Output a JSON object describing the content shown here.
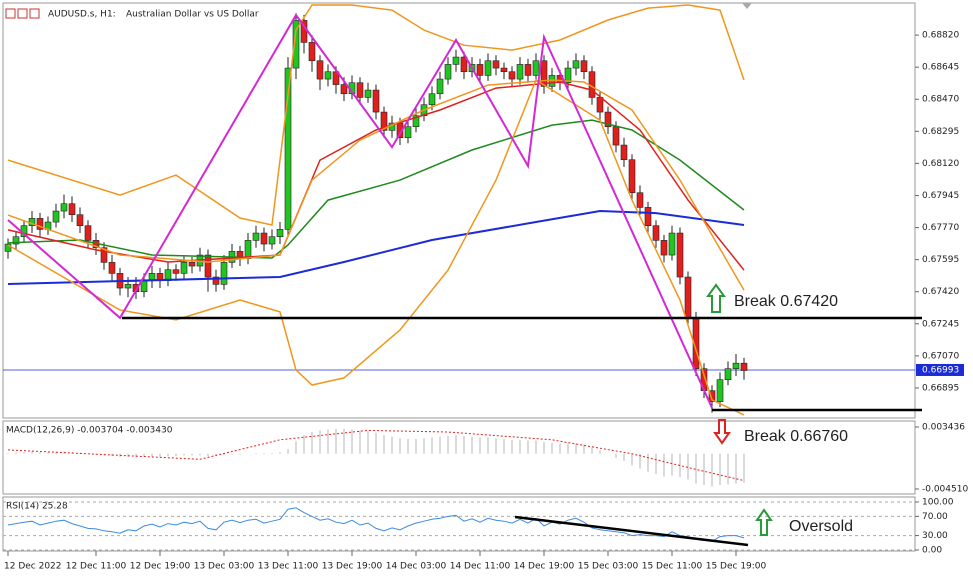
{
  "header": {
    "symbol": "AUDUSD.s, H1:",
    "description": "Australian Dollar vs US Dollar"
  },
  "chart_data": [
    {
      "type": "candlestick",
      "up_color": "#22c422",
      "down_color": "#e0201c",
      "ylim": [
        0.66731,
        0.68995
      ],
      "yticks": [
        {
          "value": 0.6882,
          "label": "0.68820"
        },
        {
          "value": 0.68645,
          "label": "0.68645"
        },
        {
          "value": 0.6847,
          "label": "0.68470"
        },
        {
          "value": 0.68295,
          "label": "0.68295"
        },
        {
          "value": 0.6812,
          "label": "0.68120"
        },
        {
          "value": 0.67945,
          "label": "0.67945"
        },
        {
          "value": 0.6777,
          "label": "0.67770"
        },
        {
          "value": 0.67595,
          "label": "0.67595"
        },
        {
          "value": 0.6742,
          "label": "0.67420"
        },
        {
          "value": 0.67245,
          "label": "0.67245"
        },
        {
          "value": 0.6707,
          "label": "0.67070"
        },
        {
          "value": 0.66895,
          "label": "0.66895"
        }
      ],
      "xticks": [
        {
          "value": 0,
          "label": "12 Dec 2022"
        },
        {
          "value": 11,
          "label": "12 Dec 11:00"
        },
        {
          "value": 19,
          "label": "12 Dec 19:00"
        },
        {
          "value": 27,
          "label": "13 Dec 03:00"
        },
        {
          "value": 35,
          "label": "13 Dec 11:00"
        },
        {
          "value": 43,
          "label": "13 Dec 19:00"
        },
        {
          "value": 51,
          "label": "14 Dec 03:00"
        },
        {
          "value": 59,
          "label": "14 Dec 11:00"
        },
        {
          "value": 67,
          "label": "14 Dec 19:00"
        },
        {
          "value": 75,
          "label": "15 Dec 03:00"
        },
        {
          "value": 83,
          "label": "15 Dec 11:00"
        },
        {
          "value": 91,
          "label": "15 Dec 19:00"
        }
      ],
      "current_price": 0.66993,
      "candles": [
        [
          0.6764,
          0.6771,
          0.676,
          0.6768
        ],
        [
          0.6768,
          0.6775,
          0.6765,
          0.6772
        ],
        [
          0.6772,
          0.6781,
          0.6769,
          0.6778
        ],
        [
          0.6778,
          0.6786,
          0.6774,
          0.6782
        ],
        [
          0.6782,
          0.6785,
          0.6772,
          0.6776
        ],
        [
          0.6776,
          0.6783,
          0.6773,
          0.678
        ],
        [
          0.678,
          0.679,
          0.6777,
          0.6786
        ],
        [
          0.6786,
          0.6795,
          0.6782,
          0.679
        ],
        [
          0.679,
          0.6794,
          0.678,
          0.6784
        ],
        [
          0.6784,
          0.6788,
          0.6774,
          0.6778
        ],
        [
          0.6778,
          0.6781,
          0.6766,
          0.677
        ],
        [
          0.677,
          0.6774,
          0.6762,
          0.6766
        ],
        [
          0.6766,
          0.6769,
          0.6754,
          0.6758
        ],
        [
          0.6758,
          0.6762,
          0.6748,
          0.6752
        ],
        [
          0.6752,
          0.6755,
          0.674,
          0.6744
        ],
        [
          0.6744,
          0.675,
          0.6739,
          0.6746
        ],
        [
          0.6746,
          0.675,
          0.6738,
          0.6742
        ],
        [
          0.6742,
          0.6752,
          0.6739,
          0.6748
        ],
        [
          0.6748,
          0.6756,
          0.6744,
          0.6752
        ],
        [
          0.6752,
          0.6755,
          0.6744,
          0.6748
        ],
        [
          0.6748,
          0.6758,
          0.6745,
          0.6754
        ],
        [
          0.6754,
          0.6757,
          0.6748,
          0.6752
        ],
        [
          0.6752,
          0.6762,
          0.6749,
          0.6758
        ],
        [
          0.6758,
          0.6761,
          0.6752,
          0.6756
        ],
        [
          0.6756,
          0.6766,
          0.6753,
          0.6762
        ],
        [
          0.6762,
          0.6765,
          0.6742,
          0.675
        ],
        [
          0.675,
          0.6754,
          0.6742,
          0.6746
        ],
        [
          0.6746,
          0.6762,
          0.6743,
          0.6758
        ],
        [
          0.6758,
          0.6768,
          0.6755,
          0.6764
        ],
        [
          0.6764,
          0.6767,
          0.6756,
          0.676
        ],
        [
          0.676,
          0.6774,
          0.6757,
          0.677
        ],
        [
          0.677,
          0.6778,
          0.6766,
          0.6774
        ],
        [
          0.6774,
          0.6777,
          0.6764,
          0.6768
        ],
        [
          0.6768,
          0.6776,
          0.6765,
          0.6772
        ],
        [
          0.6772,
          0.678,
          0.6768,
          0.6776
        ],
        [
          0.6776,
          0.687,
          0.6772,
          0.6864
        ],
        [
          0.6864,
          0.6894,
          0.6858,
          0.689
        ],
        [
          0.689,
          0.6893,
          0.6872,
          0.6878
        ],
        [
          0.6878,
          0.6882,
          0.6862,
          0.6868
        ],
        [
          0.6868,
          0.6871,
          0.6852,
          0.6858
        ],
        [
          0.6858,
          0.6866,
          0.6854,
          0.6862
        ],
        [
          0.6862,
          0.6865,
          0.685,
          0.6855
        ],
        [
          0.6855,
          0.6859,
          0.6846,
          0.685
        ],
        [
          0.685,
          0.686,
          0.6847,
          0.6856
        ],
        [
          0.6856,
          0.6859,
          0.6844,
          0.6848
        ],
        [
          0.6848,
          0.6856,
          0.6845,
          0.6852
        ],
        [
          0.6852,
          0.6855,
          0.6836,
          0.684
        ],
        [
          0.684,
          0.6843,
          0.6826,
          0.683
        ],
        [
          0.683,
          0.6838,
          0.6826,
          0.6834
        ],
        [
          0.6834,
          0.6837,
          0.6822,
          0.6826
        ],
        [
          0.6826,
          0.6836,
          0.6823,
          0.6832
        ],
        [
          0.6832,
          0.6842,
          0.6829,
          0.6838
        ],
        [
          0.6838,
          0.6848,
          0.6835,
          0.6844
        ],
        [
          0.6844,
          0.6854,
          0.6841,
          0.685
        ],
        [
          0.685,
          0.6862,
          0.6847,
          0.6858
        ],
        [
          0.6858,
          0.687,
          0.6855,
          0.6866
        ],
        [
          0.6866,
          0.6874,
          0.6862,
          0.687
        ],
        [
          0.687,
          0.6873,
          0.6858,
          0.6862
        ],
        [
          0.6862,
          0.687,
          0.6859,
          0.6866
        ],
        [
          0.6866,
          0.6869,
          0.6856,
          0.686
        ],
        [
          0.686,
          0.6872,
          0.6857,
          0.6868
        ],
        [
          0.6868,
          0.6871,
          0.686,
          0.6864
        ],
        [
          0.6864,
          0.6867,
          0.6858,
          0.6862
        ],
        [
          0.6862,
          0.6865,
          0.6854,
          0.6858
        ],
        [
          0.6858,
          0.687,
          0.6855,
          0.6866
        ],
        [
          0.6866,
          0.6869,
          0.6856,
          0.686
        ],
        [
          0.686,
          0.6872,
          0.6857,
          0.6868
        ],
        [
          0.6868,
          0.6871,
          0.685,
          0.6854
        ],
        [
          0.6854,
          0.6864,
          0.6851,
          0.686
        ],
        [
          0.686,
          0.6863,
          0.6852,
          0.6856
        ],
        [
          0.6856,
          0.6868,
          0.6853,
          0.6864
        ],
        [
          0.6864,
          0.6872,
          0.686,
          0.6868
        ],
        [
          0.6868,
          0.6871,
          0.6858,
          0.6862
        ],
        [
          0.6862,
          0.6865,
          0.6844,
          0.6848
        ],
        [
          0.6848,
          0.6851,
          0.6836,
          0.684
        ],
        [
          0.684,
          0.6843,
          0.6828,
          0.6832
        ],
        [
          0.6832,
          0.6835,
          0.6818,
          0.6822
        ],
        [
          0.6822,
          0.6826,
          0.681,
          0.6814
        ],
        [
          0.6814,
          0.6817,
          0.6792,
          0.6796
        ],
        [
          0.6796,
          0.68,
          0.6784,
          0.6788
        ],
        [
          0.6788,
          0.6791,
          0.6774,
          0.6778
        ],
        [
          0.6778,
          0.6781,
          0.6766,
          0.677
        ],
        [
          0.677,
          0.6773,
          0.6758,
          0.6762
        ],
        [
          0.6762,
          0.6778,
          0.6759,
          0.6774
        ],
        [
          0.6774,
          0.6777,
          0.6746,
          0.675
        ],
        [
          0.675,
          0.6753,
          0.6724,
          0.6728
        ],
        [
          0.6728,
          0.6731,
          0.6696,
          0.67
        ],
        [
          0.67,
          0.6703,
          0.6684,
          0.6688
        ],
        [
          0.6688,
          0.6691,
          0.6676,
          0.6682
        ],
        [
          0.6682,
          0.6698,
          0.6679,
          0.6694
        ],
        [
          0.6694,
          0.6704,
          0.6691,
          0.67
        ],
        [
          0.67,
          0.6708,
          0.6696,
          0.6703
        ],
        [
          0.6703,
          0.6706,
          0.6694,
          0.6699
        ]
      ],
      "overlays": [
        {
          "color": "#1a2bd8",
          "x": [
            0,
            34,
            42,
            53,
            66,
            74,
            81,
            92
          ],
          "values": [
            0.67462,
            0.675,
            0.67582,
            0.67702,
            0.678,
            0.6786,
            0.67849,
            0.67784
          ]
        },
        {
          "color": "#1e8a1e",
          "x": [
            0,
            9,
            18,
            33,
            35,
            40,
            49,
            58,
            68,
            73,
            78,
            84,
            92
          ],
          "values": [
            0.67686,
            0.67702,
            0.6762,
            0.67604,
            0.67675,
            0.6792,
            0.68029,
            0.68193,
            0.68329,
            0.68356,
            0.68302,
            0.68138,
            0.67866
          ]
        },
        {
          "color": "#e0201c",
          "x": [
            0,
            11,
            20,
            34,
            39,
            46,
            54,
            61,
            69,
            73,
            79,
            85,
            92
          ],
          "values": [
            0.67757,
            0.67648,
            0.67582,
            0.6762,
            0.68138,
            0.68302,
            0.68411,
            0.68531,
            0.68564,
            0.6852,
            0.68302,
            0.6792,
            0.67538
          ]
        },
        {
          "color": "#f0961e",
          "x": [
            0,
            14,
            21,
            29,
            33,
            36,
            38,
            43,
            48,
            52,
            57,
            63,
            69,
            75,
            80,
            85,
            89,
            92
          ],
          "values": [
            0.68138,
            0.67947,
            0.68056,
            0.67822,
            0.67784,
            0.68847,
            0.68984,
            0.68984,
            0.68956,
            0.68847,
            0.68765,
            0.68738,
            0.68793,
            0.68902,
            0.68967,
            0.68984,
            0.68956,
            0.68575
          ]
        },
        {
          "color": "#f0961e",
          "x": [
            0,
            14,
            21,
            29,
            34,
            36,
            38,
            42,
            49,
            55,
            61,
            66,
            70,
            74,
            78,
            84,
            88,
            92
          ],
          "values": [
            0.67675,
            0.6732,
            0.67266,
            0.67375,
            0.6731,
            0.66993,
            0.66911,
            0.6695,
            0.67211,
            0.67538,
            0.68029,
            0.68575,
            0.68466,
            0.68356,
            0.6792,
            0.67375,
            0.6683,
            0.66748
          ]
        },
        {
          "color": "#f0961e",
          "x": [
            0,
            14,
            25,
            34,
            38,
            44,
            52,
            60,
            68,
            72,
            78,
            84,
            92
          ],
          "values": [
            0.67838,
            0.6762,
            0.67582,
            0.6762,
            0.68029,
            0.68247,
            0.68411,
            0.68547,
            0.68575,
            0.68564,
            0.68411,
            0.68029,
            0.67429
          ]
        },
        {
          "color": "#d428d4",
          "x": [
            0,
            14,
            36,
            48,
            56,
            65,
            67,
            88
          ],
          "values": [
            0.67811,
            0.67277,
            0.68929,
            0.68209,
            0.68793,
            0.68106,
            0.68809,
            0.66786
          ]
        }
      ],
      "annotations": [
        "Break 0.67420",
        "Break 0.66760"
      ]
    },
    {
      "type": "macd",
      "title": "MACD(12,26,9) -0.003704 -0.003430",
      "color": "#b4b4b4",
      "ylim": [
        -0.00515,
        0.004204
      ],
      "yticks": [
        0.003436,
        {
          "value": -0.00451,
          "label": "-0.004510"
        }
      ],
      "values": [
        0.0001,
        0.0002,
        0.0002,
        0.0003,
        0.0002,
        0.0002,
        0.0003,
        0.0003,
        0.0002,
        0.0001,
        0,
        -0.0001,
        -0.0002,
        -0.0003,
        -0.0004,
        -0.0004,
        -0.0005,
        -0.0004,
        -0.0004,
        -0.0004,
        -0.0003,
        -0.0003,
        -0.0002,
        -0.0002,
        -0.0002,
        -0.0003,
        -0.0003,
        -0.0002,
        -0.0001,
        -0.0001,
        0,
        0.0001,
        0.0001,
        0.0001,
        0.0002,
        0.0006,
        0.0016,
        0.0024,
        0.0028,
        0.003,
        0.0031,
        0.0032,
        0.0032,
        0.0031,
        0.003,
        0.0029,
        0.0027,
        0.0024,
        0.0022,
        0.002,
        0.0019,
        0.0019,
        0.002,
        0.0021,
        0.0022,
        0.0023,
        0.0024,
        0.0023,
        0.0022,
        0.0021,
        0.0021,
        0.002,
        0.0019,
        0.0018,
        0.0018,
        0.0017,
        0.0017,
        0.0015,
        0.0014,
        0.0013,
        0.0013,
        0.0013,
        0.0012,
        0.0008,
        0.0004,
        0,
        -0.0005,
        -0.0009,
        -0.0015,
        -0.0019,
        -0.0023,
        -0.0026,
        -0.0029,
        -0.0028,
        -0.003,
        -0.0033,
        -0.0038,
        -0.004,
        -0.0042,
        -0.004,
        -0.0039,
        -0.0038,
        -0.003704
      ],
      "signal": {
        "color": "#e0201c",
        "x": [
          0,
          24,
          34,
          45,
          55,
          68,
          78,
          86,
          92
        ],
        "values": [
          0.0005,
          -0.0007,
          0.0018,
          0.003,
          0.0028,
          0.0018,
          0,
          -0.002,
          -0.00343
        ]
      }
    },
    {
      "type": "line",
      "title": "RSI(14) 25.28",
      "color": "#3c8ce0",
      "ylim": [
        -2.1,
        110.4
      ],
      "yticks": [
        {
          "value": 100,
          "label": "100.00"
        },
        {
          "value": 70,
          "label": "70.00"
        },
        {
          "value": 30,
          "label": "30.00"
        },
        {
          "value": 0,
          "label": "0.00"
        }
      ],
      "values": [
        52,
        55,
        58,
        60,
        52,
        56,
        60,
        62,
        55,
        50,
        45,
        44,
        40,
        38,
        35,
        42,
        40,
        50,
        54,
        48,
        55,
        52,
        58,
        55,
        60,
        45,
        42,
        58,
        62,
        57,
        62,
        64,
        56,
        60,
        64,
        85,
        88,
        78,
        70,
        62,
        65,
        58,
        55,
        62,
        52,
        56,
        45,
        40,
        46,
        42,
        50,
        56,
        60,
        64,
        66,
        70,
        72,
        60,
        65,
        58,
        66,
        62,
        60,
        56,
        64,
        56,
        66,
        50,
        58,
        54,
        62,
        66,
        58,
        46,
        42,
        40,
        38,
        36,
        30,
        32,
        30,
        30,
        28,
        38,
        30,
        28,
        22,
        20,
        18,
        28,
        30,
        30,
        25.28
      ],
      "annotations": [
        "Oversold"
      ]
    }
  ]
}
